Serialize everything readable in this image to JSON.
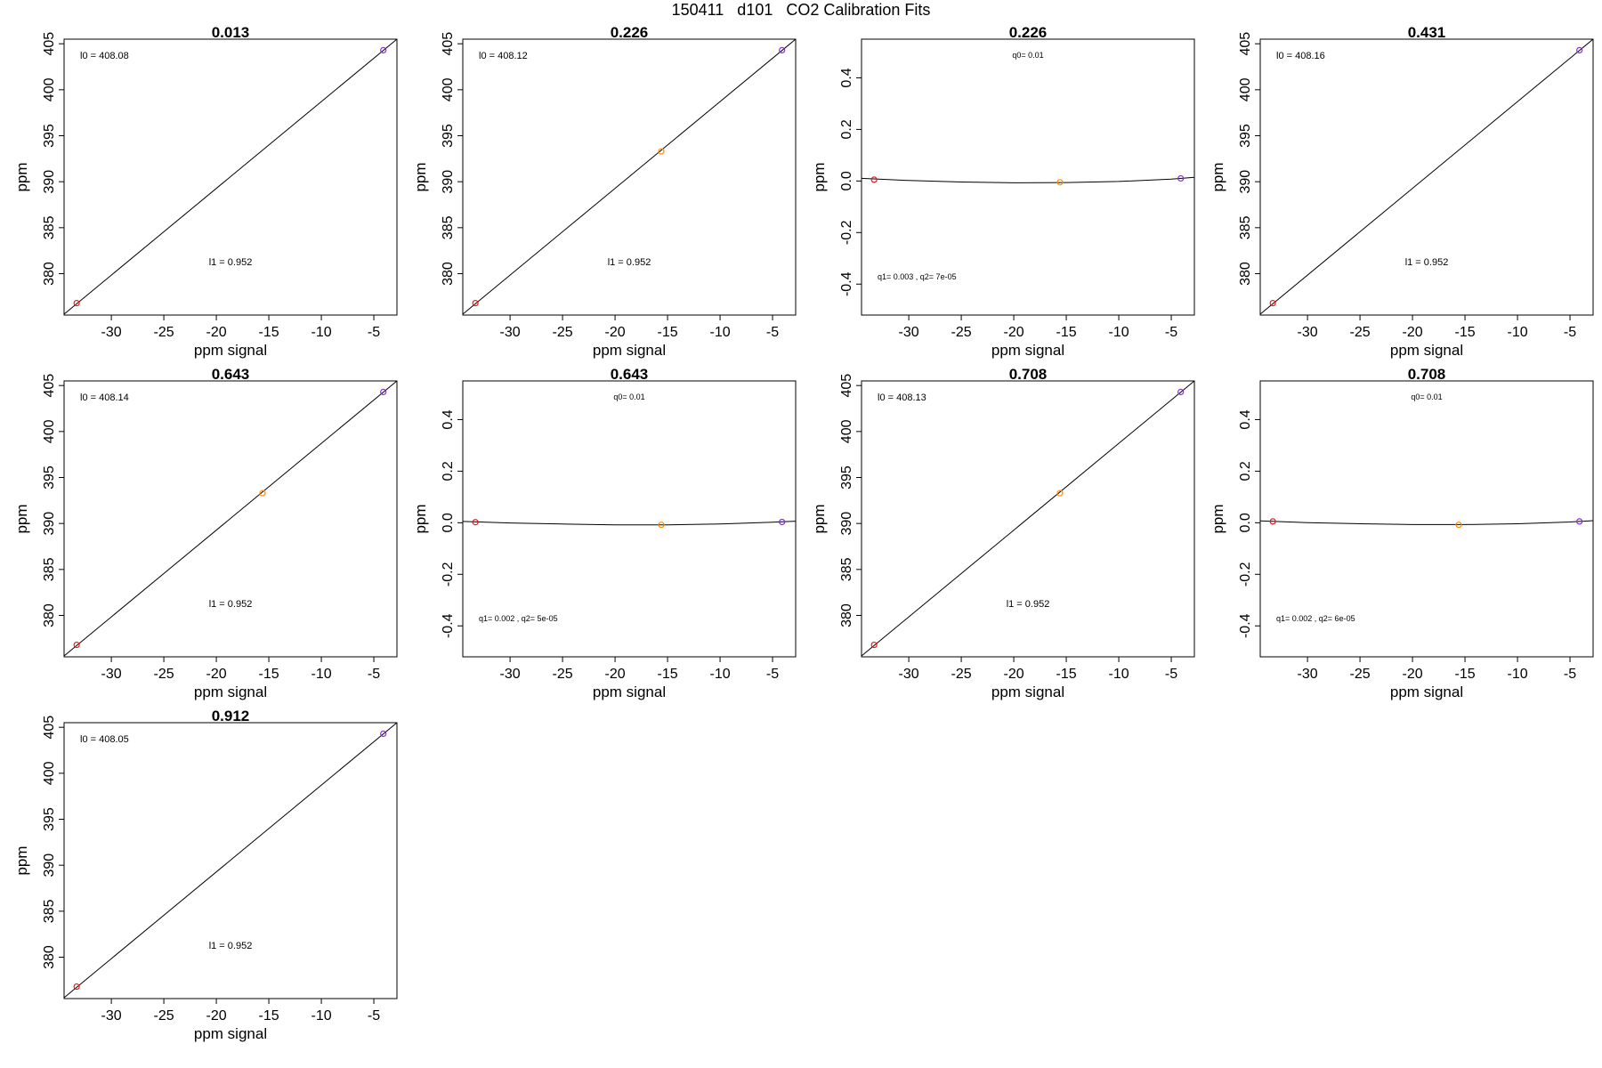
{
  "page": {
    "title": "150411   d101   CO2 Calibration Fits"
  },
  "colors": {
    "low": "#e31a1c",
    "mid": "#ff8c00",
    "high": "#8a2be2",
    "line": "#000000"
  },
  "chart_data": [
    {
      "type": "scatter",
      "fit": "linear",
      "title": "0.013",
      "xlabel": "ppm signal",
      "ylabel": "ppm",
      "xlim": [
        -34.5,
        -2.8
      ],
      "ylim": [
        375.5,
        405.5
      ],
      "xticks": [
        "-30",
        "-25",
        "-20",
        "-15",
        "-10",
        "-5"
      ],
      "xtick_values": [
        -30,
        -25,
        -20,
        -15,
        -10,
        -5
      ],
      "yticks": [
        "380",
        "385",
        "390",
        "395",
        "400",
        "405"
      ],
      "ytick_values": [
        380,
        385,
        390,
        395,
        400,
        405
      ],
      "points": [
        {
          "x": -33.3,
          "y": 376.8,
          "color": "low"
        },
        {
          "x": -4.1,
          "y": 404.3,
          "color": "high"
        }
      ],
      "curve": [
        [
          -34.5,
          375.6
        ],
        [
          -2.8,
          405.5
        ]
      ],
      "annotations": [
        {
          "text": "l0 =  408.08",
          "pos": "top-left"
        },
        {
          "text": "l1 =  0.952",
          "pos": "bottom-center"
        }
      ]
    },
    {
      "type": "scatter",
      "fit": "linear",
      "title": "0.226",
      "xlabel": "ppm signal",
      "ylabel": "ppm",
      "xlim": [
        -34.5,
        -2.8
      ],
      "ylim": [
        375.5,
        405.5
      ],
      "xticks": [
        "-30",
        "-25",
        "-20",
        "-15",
        "-10",
        "-5"
      ],
      "xtick_values": [
        -30,
        -25,
        -20,
        -15,
        -10,
        -5
      ],
      "yticks": [
        "380",
        "385",
        "390",
        "395",
        "400",
        "405"
      ],
      "ytick_values": [
        380,
        385,
        390,
        395,
        400,
        405
      ],
      "points": [
        {
          "x": -33.3,
          "y": 376.8,
          "color": "low"
        },
        {
          "x": -15.6,
          "y": 393.3,
          "color": "mid"
        },
        {
          "x": -4.1,
          "y": 404.3,
          "color": "high"
        }
      ],
      "curve": [
        [
          -34.5,
          375.6
        ],
        [
          -2.8,
          405.5
        ]
      ],
      "annotations": [
        {
          "text": "l0 =  408.12",
          "pos": "top-left"
        },
        {
          "text": "l1 =  0.952",
          "pos": "bottom-center"
        }
      ]
    },
    {
      "type": "scatter",
      "fit": "quadratic",
      "title": "0.226",
      "xlabel": "ppm signal",
      "ylabel": "ppm",
      "xlim": [
        -34.5,
        -2.8
      ],
      "ylim": [
        -0.52,
        0.55
      ],
      "xticks": [
        "-30",
        "-25",
        "-20",
        "-15",
        "-10",
        "-5"
      ],
      "xtick_values": [
        -30,
        -25,
        -20,
        -15,
        -10,
        -5
      ],
      "yticks": [
        "-0.4",
        "-0.2",
        "0.0",
        "0.2",
        "0.4"
      ],
      "ytick_values": [
        -0.4,
        -0.2,
        0.0,
        0.2,
        0.4
      ],
      "points": [
        {
          "x": -33.3,
          "y": 0.005,
          "color": "low"
        },
        {
          "x": -15.6,
          "y": -0.005,
          "color": "mid"
        },
        {
          "x": -4.1,
          "y": 0.01,
          "color": "high"
        }
      ],
      "curve": [
        [
          -34.5,
          0.01
        ],
        [
          -30,
          0.002
        ],
        [
          -25,
          -0.004
        ],
        [
          -20,
          -0.007
        ],
        [
          -15,
          -0.006
        ],
        [
          -10,
          -0.002
        ],
        [
          -5,
          0.007
        ],
        [
          -2.8,
          0.014
        ]
      ],
      "annotations": [
        {
          "text": "q0= 0.01",
          "pos": "top-center"
        },
        {
          "text": "q1= 0.003 , q2= 7e-05",
          "pos": "bottom-left"
        }
      ]
    },
    {
      "type": "scatter",
      "fit": "linear",
      "title": "0.431",
      "xlabel": "ppm signal",
      "ylabel": "ppm",
      "xlim": [
        -34.5,
        -2.8
      ],
      "ylim": [
        375.5,
        405.5
      ],
      "xticks": [
        "-30",
        "-25",
        "-20",
        "-15",
        "-10",
        "-5"
      ],
      "xtick_values": [
        -30,
        -25,
        -20,
        -15,
        -10,
        -5
      ],
      "yticks": [
        "380",
        "385",
        "390",
        "395",
        "400",
        "405"
      ],
      "ytick_values": [
        380,
        385,
        390,
        395,
        400,
        405
      ],
      "points": [
        {
          "x": -33.3,
          "y": 376.8,
          "color": "low"
        },
        {
          "x": -4.1,
          "y": 404.3,
          "color": "high"
        }
      ],
      "curve": [
        [
          -34.5,
          375.6
        ],
        [
          -2.8,
          405.5
        ]
      ],
      "annotations": [
        {
          "text": "l0 =  408.16",
          "pos": "top-left"
        },
        {
          "text": "l1 =  0.952",
          "pos": "bottom-center"
        }
      ]
    },
    {
      "type": "scatter",
      "fit": "linear",
      "title": "0.643",
      "xlabel": "ppm signal",
      "ylabel": "ppm",
      "xlim": [
        -34.5,
        -2.8
      ],
      "ylim": [
        375.5,
        405.5
      ],
      "xticks": [
        "-30",
        "-25",
        "-20",
        "-15",
        "-10",
        "-5"
      ],
      "xtick_values": [
        -30,
        -25,
        -20,
        -15,
        -10,
        -5
      ],
      "yticks": [
        "380",
        "385",
        "390",
        "395",
        "400",
        "405"
      ],
      "ytick_values": [
        380,
        385,
        390,
        395,
        400,
        405
      ],
      "points": [
        {
          "x": -33.3,
          "y": 376.8,
          "color": "low"
        },
        {
          "x": -15.6,
          "y": 393.3,
          "color": "mid"
        },
        {
          "x": -4.1,
          "y": 404.3,
          "color": "high"
        }
      ],
      "curve": [
        [
          -34.5,
          375.6
        ],
        [
          -2.8,
          405.5
        ]
      ],
      "annotations": [
        {
          "text": "l0 =  408.14",
          "pos": "top-left"
        },
        {
          "text": "l1 =  0.952",
          "pos": "bottom-center"
        }
      ]
    },
    {
      "type": "scatter",
      "fit": "quadratic",
      "title": "0.643",
      "xlabel": "ppm signal",
      "ylabel": "ppm",
      "xlim": [
        -34.5,
        -2.8
      ],
      "ylim": [
        -0.52,
        0.55
      ],
      "xticks": [
        "-30",
        "-25",
        "-20",
        "-15",
        "-10",
        "-5"
      ],
      "xtick_values": [
        -30,
        -25,
        -20,
        -15,
        -10,
        -5
      ],
      "yticks": [
        "-0.4",
        "-0.2",
        "0.0",
        "0.2",
        "0.4"
      ],
      "ytick_values": [
        -0.4,
        -0.2,
        0.0,
        0.2,
        0.4
      ],
      "points": [
        {
          "x": -33.3,
          "y": 0.002,
          "color": "low"
        },
        {
          "x": -15.6,
          "y": -0.008,
          "color": "mid"
        },
        {
          "x": -4.1,
          "y": 0.003,
          "color": "high"
        }
      ],
      "curve": [
        [
          -34.5,
          0.005
        ],
        [
          -30,
          -0.001
        ],
        [
          -25,
          -0.005
        ],
        [
          -20,
          -0.008
        ],
        [
          -15,
          -0.008
        ],
        [
          -10,
          -0.005
        ],
        [
          -5,
          0.002
        ],
        [
          -2.8,
          0.006
        ]
      ],
      "annotations": [
        {
          "text": "q0= 0.01",
          "pos": "top-center"
        },
        {
          "text": "q1= 0.002 , q2= 5e-05",
          "pos": "bottom-left"
        }
      ]
    },
    {
      "type": "scatter",
      "fit": "linear",
      "title": "0.708",
      "xlabel": "ppm signal",
      "ylabel": "ppm",
      "xlim": [
        -34.5,
        -2.8
      ],
      "ylim": [
        375.5,
        405.5
      ],
      "xticks": [
        "-30",
        "-25",
        "-20",
        "-15",
        "-10",
        "-5"
      ],
      "xtick_values": [
        -30,
        -25,
        -20,
        -15,
        -10,
        -5
      ],
      "yticks": [
        "380",
        "385",
        "390",
        "395",
        "400",
        "405"
      ],
      "ytick_values": [
        380,
        385,
        390,
        395,
        400,
        405
      ],
      "points": [
        {
          "x": -33.3,
          "y": 376.8,
          "color": "low"
        },
        {
          "x": -15.6,
          "y": 393.3,
          "color": "mid"
        },
        {
          "x": -4.1,
          "y": 404.3,
          "color": "high"
        }
      ],
      "curve": [
        [
          -34.5,
          375.6
        ],
        [
          -2.8,
          405.5
        ]
      ],
      "annotations": [
        {
          "text": "l0 =  408.13",
          "pos": "top-left"
        },
        {
          "text": "l1 =  0.952",
          "pos": "bottom-center"
        }
      ]
    },
    {
      "type": "scatter",
      "fit": "quadratic",
      "title": "0.708",
      "xlabel": "ppm signal",
      "ylabel": "ppm",
      "xlim": [
        -34.5,
        -2.8
      ],
      "ylim": [
        -0.52,
        0.55
      ],
      "xticks": [
        "-30",
        "-25",
        "-20",
        "-15",
        "-10",
        "-5"
      ],
      "xtick_values": [
        -30,
        -25,
        -20,
        -15,
        -10,
        -5
      ],
      "yticks": [
        "-0.4",
        "-0.2",
        "0.0",
        "0.2",
        "0.4"
      ],
      "ytick_values": [
        -0.4,
        -0.2,
        0.0,
        0.2,
        0.4
      ],
      "points": [
        {
          "x": -33.3,
          "y": 0.005,
          "color": "low"
        },
        {
          "x": -15.6,
          "y": -0.008,
          "color": "mid"
        },
        {
          "x": -4.1,
          "y": 0.005,
          "color": "high"
        }
      ],
      "curve": [
        [
          -34.5,
          0.007
        ],
        [
          -30,
          0.0
        ],
        [
          -25,
          -0.004
        ],
        [
          -20,
          -0.007
        ],
        [
          -15,
          -0.007
        ],
        [
          -10,
          -0.004
        ],
        [
          -5,
          0.003
        ],
        [
          -2.8,
          0.008
        ]
      ],
      "annotations": [
        {
          "text": "q0= 0.01",
          "pos": "top-center"
        },
        {
          "text": "q1= 0.002 , q2= 6e-05",
          "pos": "bottom-left"
        }
      ]
    },
    {
      "type": "scatter",
      "fit": "linear",
      "title": "0.912",
      "xlabel": "ppm signal",
      "ylabel": "ppm",
      "xlim": [
        -34.5,
        -2.8
      ],
      "ylim": [
        375.5,
        405.5
      ],
      "xticks": [
        "-30",
        "-25",
        "-20",
        "-15",
        "-10",
        "-5"
      ],
      "xtick_values": [
        -30,
        -25,
        -20,
        -15,
        -10,
        -5
      ],
      "yticks": [
        "380",
        "385",
        "390",
        "395",
        "400",
        "405"
      ],
      "ytick_values": [
        380,
        385,
        390,
        395,
        400,
        405
      ],
      "points": [
        {
          "x": -33.3,
          "y": 376.8,
          "color": "low"
        },
        {
          "x": -4.1,
          "y": 404.3,
          "color": "high"
        }
      ],
      "curve": [
        [
          -34.5,
          375.6
        ],
        [
          -2.8,
          405.5
        ]
      ],
      "annotations": [
        {
          "text": "l0 =  408.05",
          "pos": "top-left"
        },
        {
          "text": "l1 =  0.952",
          "pos": "bottom-center"
        }
      ]
    }
  ]
}
